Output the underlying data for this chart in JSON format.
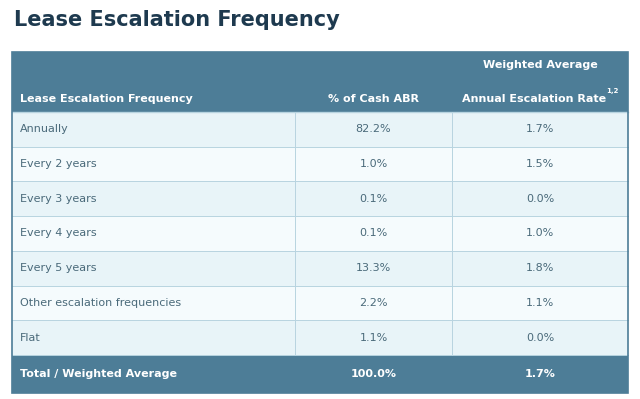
{
  "title": "Lease Escalation Frequency",
  "header_bg_color": "#4d7d97",
  "header_text_color": "#ffffff",
  "row_bg_even": "#e8f4f8",
  "row_bg_odd": "#f5fbfd",
  "footer_bg_color": "#4d7d97",
  "footer_text_color": "#ffffff",
  "border_color": "#b8d4e0",
  "outer_border_color": "#4d7d97",
  "col1_header": "Lease Escalation Frequency",
  "col2_header": "% of Cash ABR",
  "col3_header_line1": "Weighted Average",
  "col3_header_line2": "Annual Escalation Rate",
  "col3_superscript": "1,2",
  "rows": [
    [
      "Annually",
      "82.2%",
      "1.7%"
    ],
    [
      "Every 2 years",
      "1.0%",
      "1.5%"
    ],
    [
      "Every 3 years",
      "0.1%",
      "0.0%"
    ],
    [
      "Every 4 years",
      "0.1%",
      "1.0%"
    ],
    [
      "Every 5 years",
      "13.3%",
      "1.8%"
    ],
    [
      "Other escalation frequencies",
      "2.2%",
      "1.1%"
    ],
    [
      "Flat",
      "1.1%",
      "0.0%"
    ]
  ],
  "footer_row": [
    "Total / Weighted Average",
    "100.0%",
    "1.7%"
  ],
  "title_color": "#1e3a4f",
  "data_text_color": "#4a6a7a",
  "figsize": [
    6.4,
    3.99
  ],
  "dpi": 100
}
